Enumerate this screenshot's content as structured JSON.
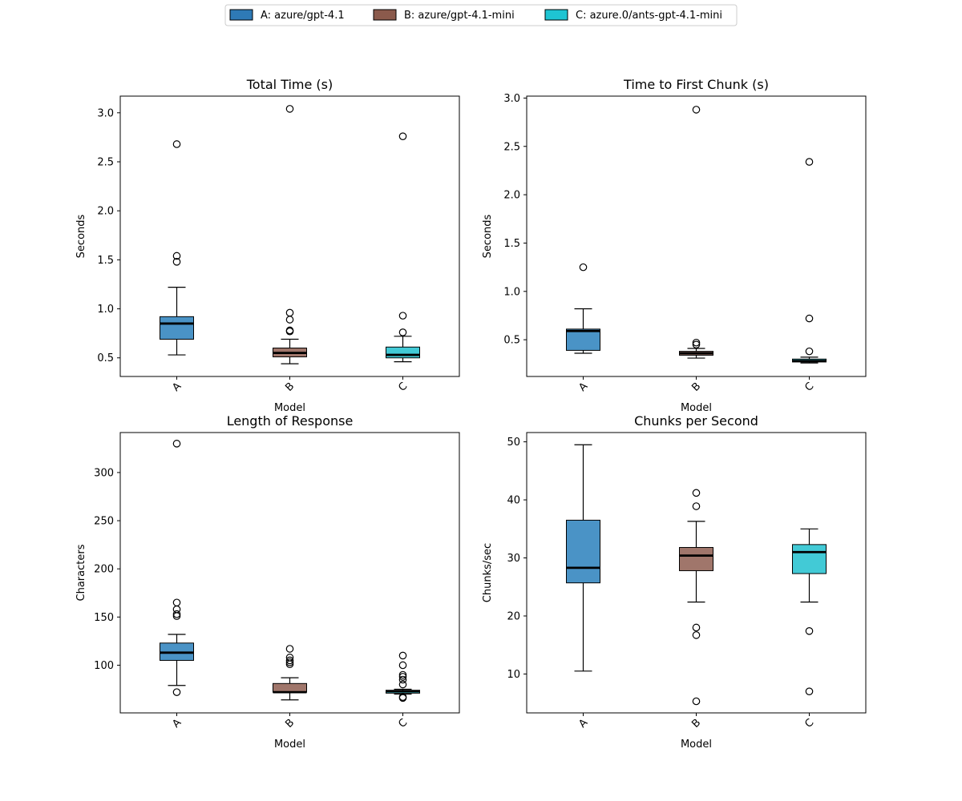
{
  "legend": {
    "items": [
      {
        "label": "A: azure/gpt-4.1",
        "color": "#2e7ab6"
      },
      {
        "label": "B: azure/gpt-4.1-mini",
        "color": "#8b5a4c"
      },
      {
        "label": "C: azure.0/ants-gpt-4.1-mini",
        "color": "#1ec4d2"
      }
    ]
  },
  "chart_data": [
    {
      "type": "box",
      "title": "Total Time (s)",
      "xlabel": "Model",
      "ylabel": "Seconds",
      "categories": [
        "A",
        "B",
        "C"
      ],
      "ylim": [
        0.31,
        3.17
      ],
      "yticks": [
        {
          "v": 0.5,
          "t": "0.5"
        },
        {
          "v": 1.0,
          "t": "1.0"
        },
        {
          "v": 1.5,
          "t": "1.5"
        },
        {
          "v": 2.0,
          "t": "2.0"
        },
        {
          "v": 2.5,
          "t": "2.5"
        },
        {
          "v": 3.0,
          "t": "3.0"
        }
      ],
      "boxes": [
        {
          "name": "A",
          "whislo": 0.53,
          "q1": 0.69,
          "med": 0.85,
          "q3": 0.92,
          "whishi": 1.22,
          "fliers": [
            1.48,
            1.54,
            2.68
          ],
          "fill": "#4a93c6"
        },
        {
          "name": "B",
          "whislo": 0.44,
          "q1": 0.51,
          "med": 0.55,
          "q3": 0.6,
          "whishi": 0.69,
          "fliers": [
            0.77,
            0.78,
            0.89,
            0.96,
            3.04
          ],
          "fill": "#a0766b"
        },
        {
          "name": "C",
          "whislo": 0.46,
          "q1": 0.5,
          "med": 0.53,
          "q3": 0.61,
          "whishi": 0.72,
          "fliers": [
            0.76,
            0.93,
            2.76
          ],
          "fill": "#42cad6"
        }
      ]
    },
    {
      "type": "box",
      "title": "Time to First Chunk (s)",
      "xlabel": "Model",
      "ylabel": "Seconds",
      "categories": [
        "A",
        "B",
        "C"
      ],
      "ylim": [
        0.12,
        3.02
      ],
      "yticks": [
        {
          "v": 0.5,
          "t": "0.5"
        },
        {
          "v": 1.0,
          "t": "1.0"
        },
        {
          "v": 1.5,
          "t": "1.5"
        },
        {
          "v": 2.0,
          "t": "2.0"
        },
        {
          "v": 2.5,
          "t": "2.5"
        },
        {
          "v": 3.0,
          "t": "3.0"
        }
      ],
      "boxes": [
        {
          "name": "A",
          "whislo": 0.36,
          "q1": 0.39,
          "med": 0.59,
          "q3": 0.61,
          "whishi": 0.82,
          "fliers": [
            1.25
          ],
          "fill": "#4a93c6"
        },
        {
          "name": "B",
          "whislo": 0.31,
          "q1": 0.34,
          "med": 0.36,
          "q3": 0.38,
          "whishi": 0.41,
          "fliers": [
            0.45,
            0.47,
            2.88
          ],
          "fill": "#a0766b"
        },
        {
          "name": "C",
          "whislo": 0.26,
          "q1": 0.27,
          "med": 0.28,
          "q3": 0.3,
          "whishi": 0.32,
          "fliers": [
            0.38,
            0.72,
            2.34
          ],
          "fill": "#42cad6"
        }
      ]
    },
    {
      "type": "box",
      "title": "Length of Response",
      "xlabel": "Model",
      "ylabel": "Characters",
      "categories": [
        "A",
        "B",
        "C"
      ],
      "ylim": [
        50.5,
        341.5
      ],
      "yticks": [
        {
          "v": 100,
          "t": "100"
        },
        {
          "v": 150,
          "t": "150"
        },
        {
          "v": 200,
          "t": "200"
        },
        {
          "v": 250,
          "t": "250"
        },
        {
          "v": 300,
          "t": "300"
        }
      ],
      "boxes": [
        {
          "name": "A",
          "whislo": 79,
          "q1": 105,
          "med": 113,
          "q3": 123,
          "whishi": 132,
          "fliers": [
            72,
            151,
            153,
            158,
            165,
            330
          ],
          "fill": "#4a93c6"
        },
        {
          "name": "B",
          "whislo": 64,
          "q1": 72,
          "med": 72,
          "q3": 81,
          "whishi": 87,
          "fliers": [
            101,
            103,
            105,
            108,
            117
          ],
          "fill": "#a0766b"
        },
        {
          "name": "C",
          "whislo": 70,
          "q1": 71,
          "med": 73,
          "q3": 74,
          "whishi": 75,
          "fliers": [
            66,
            67,
            80,
            85,
            88,
            90,
            100,
            110
          ],
          "fill": "#42cad6"
        }
      ]
    },
    {
      "type": "box",
      "title": "Chunks per Second",
      "xlabel": "Model",
      "ylabel": "Chunks/sec",
      "categories": [
        "A",
        "B",
        "C"
      ],
      "ylim": [
        3.3,
        51.6
      ],
      "yticks": [
        {
          "v": 10,
          "t": "10"
        },
        {
          "v": 20,
          "t": "20"
        },
        {
          "v": 30,
          "t": "30"
        },
        {
          "v": 40,
          "t": "40"
        },
        {
          "v": 50,
          "t": "50"
        }
      ],
      "boxes": [
        {
          "name": "A",
          "whislo": 10.5,
          "q1": 25.7,
          "med": 28.3,
          "q3": 36.5,
          "whishi": 49.5,
          "fliers": [],
          "fill": "#4a93c6"
        },
        {
          "name": "B",
          "whislo": 22.4,
          "q1": 27.8,
          "med": 30.4,
          "q3": 31.8,
          "whishi": 36.3,
          "fliers": [
            5.3,
            16.7,
            18.0,
            38.9,
            41.2
          ],
          "fill": "#a0766b"
        },
        {
          "name": "C",
          "whislo": 22.4,
          "q1": 27.3,
          "med": 31.0,
          "q3": 32.3,
          "whishi": 35.0,
          "fliers": [
            7.0,
            17.4
          ],
          "fill": "#42cad6"
        }
      ]
    }
  ]
}
